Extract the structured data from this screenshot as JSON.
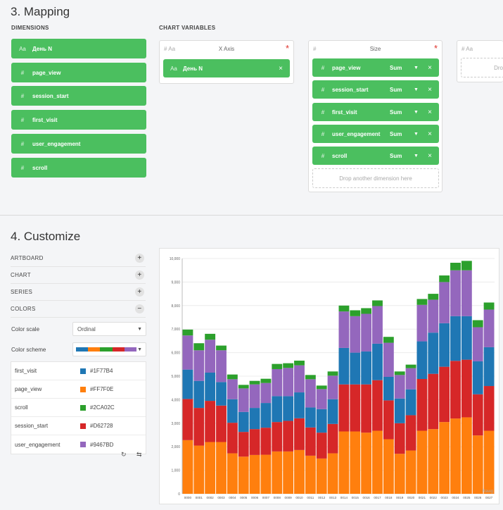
{
  "mapping": {
    "title": "3. Mapping",
    "dimensions_label": "DIMENSIONS",
    "chart_variables_label": "CHART VARIABLES",
    "dimensions": [
      {
        "type": "Aa",
        "name": "День N"
      },
      {
        "type": "#",
        "name": "page_view"
      },
      {
        "type": "#",
        "name": "session_start"
      },
      {
        "type": "#",
        "name": "first_visit"
      },
      {
        "type": "#",
        "name": "user_engagement"
      },
      {
        "type": "#",
        "name": "scroll"
      }
    ],
    "x_axis": {
      "title": "X Axis",
      "type_icons": "#  Aa",
      "required": "*",
      "pill": {
        "type": "Aa",
        "name": "День N",
        "remove": "×"
      }
    },
    "size": {
      "title": "Size",
      "type_icons": "#",
      "required": "*",
      "pills": [
        {
          "type": "#",
          "name": "page_view",
          "agg": "Sum",
          "remove": "×"
        },
        {
          "type": "#",
          "name": "session_start",
          "agg": "Sum",
          "remove": "×"
        },
        {
          "type": "#",
          "name": "first_visit",
          "agg": "Sum",
          "remove": "×"
        },
        {
          "type": "#",
          "name": "user_engagement",
          "agg": "Sum",
          "remove": "×"
        },
        {
          "type": "#",
          "name": "scroll",
          "agg": "Sum",
          "remove": "×"
        }
      ],
      "drop_text": "Drop another dimension here"
    },
    "third_panel": {
      "type_icons": "#  Aa",
      "drop_text": "Dro"
    }
  },
  "customize": {
    "title": "4. Customize",
    "sections": [
      {
        "label": "ARTBOARD",
        "btn": "+"
      },
      {
        "label": "CHART",
        "btn": "+"
      },
      {
        "label": "SERIES",
        "btn": "+"
      },
      {
        "label": "COLORS",
        "btn": "−"
      }
    ],
    "color_scale_label": "Color scale",
    "color_scale_value": "Ordinal",
    "color_scheme_label": "Color scheme",
    "color_rows": [
      {
        "name": "first_visit",
        "hex": "#1F77B4",
        "color": "#1f77b4"
      },
      {
        "name": "page_view",
        "hex": "#FF7F0E",
        "color": "#ff7f0e"
      },
      {
        "name": "scroll",
        "hex": "#2CA02C",
        "color": "#2ca02c"
      },
      {
        "name": "session_start",
        "hex": "#D62728",
        "color": "#d62728"
      },
      {
        "name": "user_engagement",
        "hex": "#9467BD",
        "color": "#9467bd"
      }
    ],
    "reset_icon": "↻",
    "swap_icon": "⇆"
  },
  "chart_data": {
    "type": "bar",
    "stacked": true,
    "categories": [
      "0000",
      "0001",
      "0002",
      "0003",
      "0004",
      "0005",
      "0006",
      "0007",
      "0008",
      "0009",
      "0010",
      "0011",
      "0012",
      "0013",
      "0014",
      "0015",
      "0016",
      "0017",
      "0018",
      "0019",
      "0020",
      "0021",
      "0022",
      "0023",
      "0024",
      "0025",
      "0026",
      "0027"
    ],
    "ylim": [
      0,
      10000
    ],
    "yticks": [
      "0",
      "1,000",
      "2,000",
      "3,000",
      "4,000",
      "5,000",
      "6,000",
      "7,000",
      "8,000",
      "9,000",
      "10,000"
    ],
    "grid": true,
    "watermark": "Rawg",
    "series": [
      {
        "name": "page_view",
        "color": "#ff7f0e",
        "values": [
          2280,
          2050,
          2200,
          2200,
          1720,
          1580,
          1650,
          1660,
          1800,
          1800,
          1860,
          1620,
          1500,
          1720,
          2650,
          2650,
          2600,
          2680,
          2320,
          1700,
          1840,
          2680,
          2750,
          3050,
          3200,
          3250,
          2480,
          2680
        ]
      },
      {
        "name": "session_start",
        "color": "#d62728",
        "values": [
          1750,
          1600,
          1750,
          1550,
          1300,
          1050,
          1100,
          1150,
          1250,
          1300,
          1350,
          1200,
          1100,
          1250,
          2000,
          2000,
          2050,
          2150,
          1650,
          1300,
          1500,
          2200,
          2350,
          2350,
          2450,
          2450,
          1750,
          1900
        ]
      },
      {
        "name": "first_visit",
        "color": "#1f77b4",
        "values": [
          1250,
          1150,
          1200,
          1000,
          1000,
          850,
          900,
          1050,
          1100,
          1050,
          1100,
          850,
          1000,
          1050,
          1550,
          1350,
          1400,
          1550,
          1000,
          1050,
          1100,
          1600,
          1750,
          1850,
          1900,
          1850,
          1400,
          1650
        ]
      },
      {
        "name": "user_engagement",
        "color": "#9467bd",
        "values": [
          1450,
          1300,
          1400,
          1350,
          850,
          1000,
          1000,
          850,
          1150,
          1200,
          1150,
          1200,
          850,
          1000,
          1550,
          1550,
          1600,
          1600,
          1450,
          1000,
          900,
          1550,
          1400,
          1750,
          1950,
          1950,
          1450,
          1600
        ]
      },
      {
        "name": "scroll",
        "color": "#2ca02c",
        "values": [
          250,
          300,
          250,
          200,
          200,
          150,
          150,
          180,
          220,
          200,
          200,
          180,
          150,
          180,
          250,
          250,
          240,
          240,
          250,
          150,
          150,
          250,
          250,
          280,
          320,
          400,
          300,
          300
        ]
      }
    ]
  }
}
